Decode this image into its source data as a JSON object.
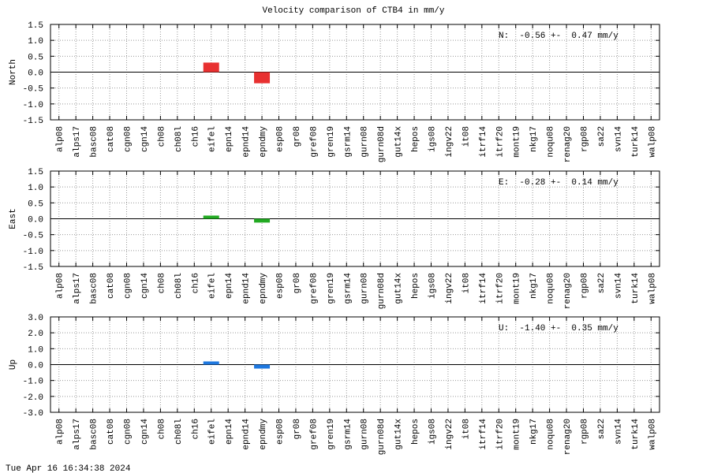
{
  "title": "Velocity comparison of CTB4 in mm/y",
  "timestamp": "Tue Apr 16 16:34:38 2024",
  "chart_data": [
    {
      "type": "bar",
      "ylabel": "North",
      "annotation": "N:  -0.56 +-  0.47 mm/y",
      "color": "#e83030",
      "grid": true,
      "categories": [
        "alp08",
        "alps17",
        "basc08",
        "cat08",
        "cgn08",
        "cgn14",
        "ch08",
        "ch08l",
        "ch16",
        "eifel",
        "epn14",
        "epnd14",
        "epndmy",
        "esp08",
        "gr08",
        "gref08",
        "gren19",
        "gsrm14",
        "gurn08",
        "gurn08d",
        "gut14x",
        "hepos",
        "igs08",
        "ingv22",
        "it08",
        "itrf14",
        "itrf20",
        "mont19",
        "nkg17",
        "noqu08",
        "renag20",
        "rgp08",
        "sa22",
        "svn14",
        "turk14",
        "walp08"
      ],
      "values": [
        null,
        null,
        null,
        null,
        null,
        null,
        null,
        null,
        null,
        0.3,
        null,
        null,
        -0.35,
        null,
        null,
        null,
        null,
        null,
        null,
        null,
        null,
        null,
        null,
        null,
        null,
        null,
        null,
        null,
        null,
        null,
        null,
        null,
        null,
        null,
        null,
        null
      ],
      "ylim": [
        -1.5,
        1.5
      ],
      "yticks": [
        -1.5,
        {
          "value": -1,
          "label": "-1.0"
        },
        -0.5,
        {
          "value": 0,
          "label": "0.0"
        },
        0.5,
        {
          "value": 1,
          "label": "1.0"
        },
        1.5
      ]
    },
    {
      "type": "bar",
      "ylabel": "East",
      "annotation": "E:  -0.28 +-  0.14 mm/y",
      "color": "#22aa22",
      "grid": true,
      "categories": [
        "alp08",
        "alps17",
        "basc08",
        "cat08",
        "cgn08",
        "cgn14",
        "ch08",
        "ch08l",
        "ch16",
        "eifel",
        "epn14",
        "epnd14",
        "epndmy",
        "esp08",
        "gr08",
        "gref08",
        "gren19",
        "gsrm14",
        "gurn08",
        "gurn08d",
        "gut14x",
        "hepos",
        "igs08",
        "ingv22",
        "it08",
        "itrf14",
        "itrf20",
        "mont19",
        "nkg17",
        "noqu08",
        "renag20",
        "rgp08",
        "sa22",
        "svn14",
        "turk14",
        "walp08"
      ],
      "values": [
        null,
        null,
        null,
        null,
        null,
        null,
        null,
        null,
        null,
        0.1,
        null,
        null,
        -0.12,
        null,
        null,
        null,
        null,
        null,
        null,
        null,
        null,
        null,
        null,
        null,
        null,
        null,
        null,
        null,
        null,
        null,
        null,
        null,
        null,
        null,
        null,
        null
      ],
      "ylim": [
        -1.5,
        1.5
      ],
      "yticks": [
        -1.5,
        {
          "value": -1,
          "label": "-1.0"
        },
        -0.5,
        {
          "value": 0,
          "label": "0.0"
        },
        0.5,
        {
          "value": 1,
          "label": "1.0"
        },
        1.5
      ]
    },
    {
      "type": "bar",
      "ylabel": "Up",
      "annotation": "U:  -1.40 +-  0.35 mm/y",
      "color": "#1e78e0",
      "grid": true,
      "categories": [
        "alp08",
        "alps17",
        "basc08",
        "cat08",
        "cgn08",
        "cgn14",
        "ch08",
        "ch08l",
        "ch16",
        "eifel",
        "epn14",
        "epnd14",
        "epndmy",
        "esp08",
        "gr08",
        "gref08",
        "gren19",
        "gsrm14",
        "gurn08",
        "gurn08d",
        "gut14x",
        "hepos",
        "igs08",
        "ingv22",
        "it08",
        "itrf14",
        "itrf20",
        "mont19",
        "nkg17",
        "noqu08",
        "renag20",
        "rgp08",
        "sa22",
        "svn14",
        "turk14",
        "walp08"
      ],
      "values": [
        null,
        null,
        null,
        null,
        null,
        null,
        null,
        null,
        null,
        0.2,
        null,
        null,
        -0.25,
        null,
        null,
        null,
        null,
        null,
        null,
        null,
        null,
        null,
        null,
        null,
        null,
        null,
        null,
        null,
        null,
        null,
        null,
        null,
        null,
        null,
        null,
        null
      ],
      "ylim": [
        -3,
        3
      ],
      "yticks": [
        {
          "value": -3,
          "label": "-3.0"
        },
        {
          "value": -2,
          "label": "-2.0"
        },
        {
          "value": -1,
          "label": "-1.0"
        },
        {
          "value": 0,
          "label": "0.0"
        },
        {
          "value": 1,
          "label": "1.0"
        },
        {
          "value": 2,
          "label": "2.0"
        },
        {
          "value": 3,
          "label": "3.0"
        }
      ]
    }
  ]
}
